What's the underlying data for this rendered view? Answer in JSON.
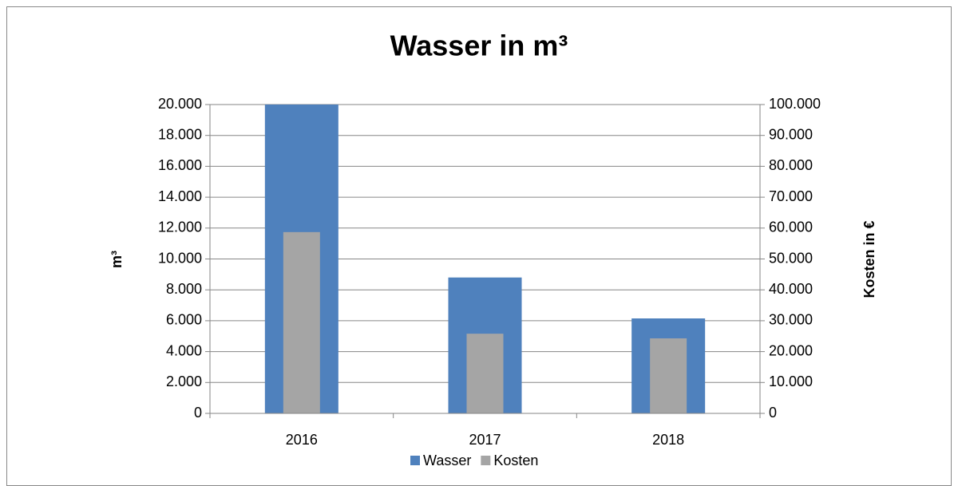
{
  "chart_data": {
    "type": "bar",
    "title": "Wasser in m³",
    "ylabel": "m³",
    "y2label": "Kosten in €",
    "categories": [
      "2016",
      "2017",
      "2018"
    ],
    "series": [
      {
        "name": "Wasser",
        "color": "#4f81bd",
        "values": [
          20000,
          8800,
          6150
        ]
      },
      {
        "name": "Kosten",
        "color": "#a5a5a5",
        "axis": "y2",
        "values": [
          58700,
          25800,
          24300
        ]
      }
    ],
    "ylim": [
      0,
      20000
    ],
    "yticks": [
      0,
      {
        "value": 2000,
        "label": "2.000"
      },
      {
        "value": 4000,
        "label": "4.000"
      },
      {
        "value": 6000,
        "label": "6.000"
      },
      {
        "value": 8000,
        "label": "8.000"
      },
      {
        "value": 10000,
        "label": "10.000"
      },
      {
        "value": 12000,
        "label": "12.000"
      },
      {
        "value": 14000,
        "label": "14.000"
      },
      {
        "value": 16000,
        "label": "16.000"
      },
      {
        "value": 18000,
        "label": "18.000"
      },
      {
        "value": 20000,
        "label": "20.000"
      }
    ],
    "y2lim": [
      0,
      100000
    ],
    "y2ticks": [
      0,
      {
        "value": 10000,
        "label": "10.000"
      },
      {
        "value": 20000,
        "label": "20.000"
      },
      {
        "value": 30000,
        "label": "30.000"
      },
      {
        "value": 40000,
        "label": "40.000"
      },
      {
        "value": 50000,
        "label": "50.000"
      },
      {
        "value": 60000,
        "label": "60.000"
      },
      {
        "value": 70000,
        "label": "70.000"
      },
      {
        "value": 80000,
        "label": "80.000"
      },
      {
        "value": 90000,
        "label": "90.000"
      },
      {
        "value": 100000,
        "label": "100.000"
      }
    ],
    "grid": true,
    "legend": "bottom"
  }
}
